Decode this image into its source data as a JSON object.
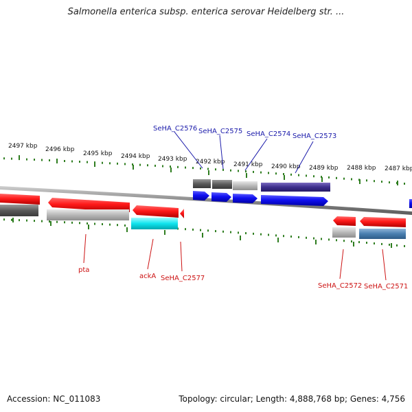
{
  "title": "Salmonella enterica subsp. enterica serovar Heidelberg str. ...",
  "footer": {
    "accession": "Accession: NC_011083",
    "summary": "Topology: circular; Length: 4,888,768 bp; Genes: 4,756"
  },
  "ruler": {
    "labels": [
      "2497 kbp",
      "2496 kbp",
      "2495 kbp",
      "2494 kbp",
      "2493 kbp",
      "2492 kbp",
      "2491 kbp",
      "2490 kbp",
      "2489 kbp",
      "2488 kbp",
      "2487 kbp"
    ]
  },
  "genes_top": [
    "SeHA_C2576",
    "SeHA_C2575",
    "SeHA_C2574",
    "SeHA_C2573"
  ],
  "genes_bottom": [
    "pta",
    "ackA",
    "SeHA_C2577",
    "SeHA_C2572",
    "SeHA_C2571"
  ],
  "colors": {
    "forward_label": "#1a1aaa",
    "reverse_label": "#cc1111",
    "tick": "#2e7d1f",
    "backbone": "#8a8a8a"
  }
}
